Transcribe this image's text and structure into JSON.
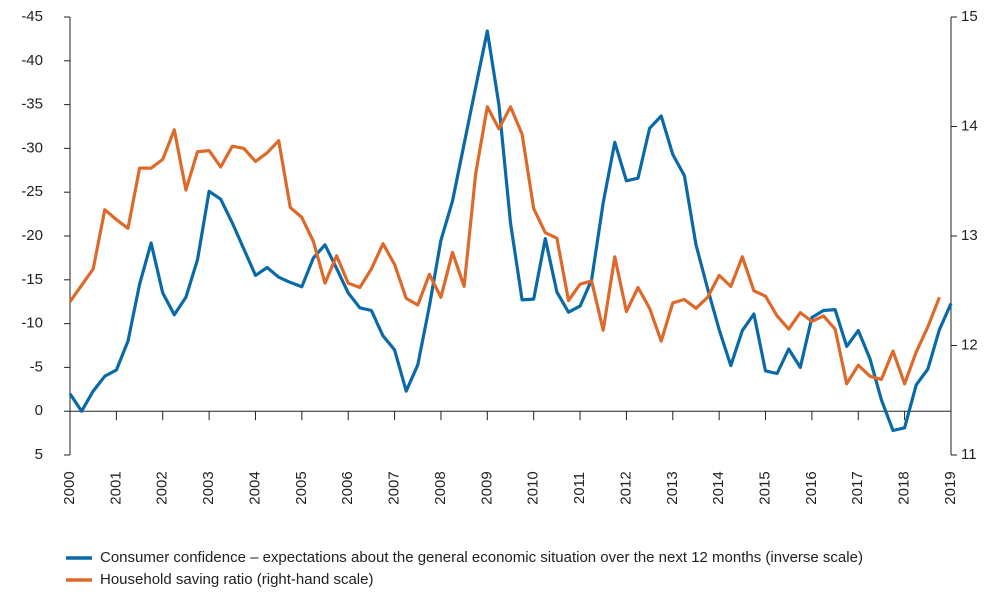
{
  "chart_data": {
    "type": "line",
    "x": [
      2000,
      2000.25,
      2000.5,
      2000.75,
      2001,
      2001.25,
      2001.5,
      2001.75,
      2002,
      2002.25,
      2002.5,
      2002.75,
      2003,
      2003.25,
      2003.5,
      2003.75,
      2004,
      2004.25,
      2004.5,
      2004.75,
      2005,
      2005.25,
      2005.5,
      2005.75,
      2006,
      2006.25,
      2006.5,
      2006.75,
      2007,
      2007.25,
      2007.5,
      2007.75,
      2008,
      2008.25,
      2008.5,
      2008.75,
      2009,
      2009.25,
      2009.5,
      2009.75,
      2010,
      2010.25,
      2010.5,
      2010.75,
      2011,
      2011.25,
      2011.5,
      2011.75,
      2012,
      2012.25,
      2012.5,
      2012.75,
      2013,
      2013.25,
      2013.5,
      2013.75,
      2014,
      2014.25,
      2014.5,
      2014.75,
      2015,
      2015.25,
      2015.5,
      2015.75,
      2016,
      2016.25,
      2016.5,
      2016.75,
      2017,
      2017.25,
      2017.5,
      2017.75,
      2018,
      2018.25,
      2018.5,
      2018.75,
      2019
    ],
    "series": [
      {
        "name": "Consumer confidence – expectations about the general economic situation over the next 12 months (inverse scale)",
        "color": "#0a6aa8",
        "values": [
          -2,
          0,
          -2.3,
          -4,
          -4.7,
          -8,
          -14.5,
          -19.2,
          -13.5,
          -11,
          -13,
          -17.3,
          -25.1,
          -24.2,
          -21.5,
          -18.5,
          -15.5,
          -16.4,
          -15.3,
          -14.7,
          -14.2,
          -17.5,
          -19,
          -16.3,
          -13.5,
          -11.8,
          -11.5,
          -8.6,
          -7,
          -2.3,
          -5.3,
          -12,
          -19.5,
          -24,
          -30.5,
          -37,
          -43.4,
          -35,
          -21.5,
          -12.7,
          -12.8,
          -19.7,
          -13.6,
          -11.3,
          -12,
          -15,
          -23.8,
          -30.7,
          -26.3,
          -26.6,
          -32.3,
          -33.7,
          -29.3,
          -26.9,
          -19,
          -14,
          -9.3,
          -5.2,
          -9.2,
          -11.1,
          -4.6,
          -4.3,
          -7.1,
          -5,
          -10.7,
          -11.5,
          -11.6,
          -7.4,
          -9.2,
          -6,
          -1.3,
          2.2,
          1.9,
          -3,
          -4.8,
          -9.3,
          -12.3
        ]
      },
      {
        "name": "Household saving ratio (right-hand scale)",
        "color": "#dd6a2a",
        "axis": "y2",
        "values": [
          12.4,
          12.55,
          12.7,
          13.24,
          13.15,
          13.07,
          13.62,
          13.62,
          13.7,
          13.97,
          13.42,
          13.77,
          13.78,
          13.63,
          13.82,
          13.8,
          13.68,
          13.76,
          13.87,
          13.26,
          13.17,
          12.95,
          12.57,
          12.82,
          12.57,
          12.53,
          12.7,
          12.93,
          12.74,
          12.43,
          12.37,
          12.65,
          12.44,
          12.85,
          12.54,
          13.57,
          14.18,
          13.98,
          14.18,
          13.93,
          13.25,
          13.03,
          12.98,
          12.41,
          12.56,
          12.59,
          12.14,
          12.81,
          12.31,
          12.53,
          12.34,
          12.04,
          12.39,
          12.42,
          12.34,
          12.44,
          12.64,
          12.54,
          12.81,
          12.5,
          12.45,
          12.27,
          12.15,
          12.3,
          12.22,
          12.27,
          12.15,
          11.65,
          11.82,
          11.72,
          11.69,
          11.95,
          11.65,
          11.94,
          12.17,
          12.44,
          null
        ]
      }
    ],
    "xlim": [
      2000,
      2019
    ],
    "xticks": [
      2000,
      2001,
      2002,
      2003,
      2004,
      2005,
      2006,
      2007,
      2008,
      2009,
      2010,
      2011,
      2012,
      2013,
      2014,
      2015,
      2016,
      2017,
      2018,
      2019
    ],
    "ylim": [
      -45,
      5
    ],
    "y_inverted": true,
    "yticks": [
      -45,
      -40,
      -35,
      -30,
      -25,
      -20,
      -15,
      -10,
      -5,
      0,
      5
    ],
    "y2lim": [
      11,
      15
    ],
    "y2ticks": [
      11,
      12,
      13,
      14,
      15
    ],
    "legend": "bottom"
  }
}
